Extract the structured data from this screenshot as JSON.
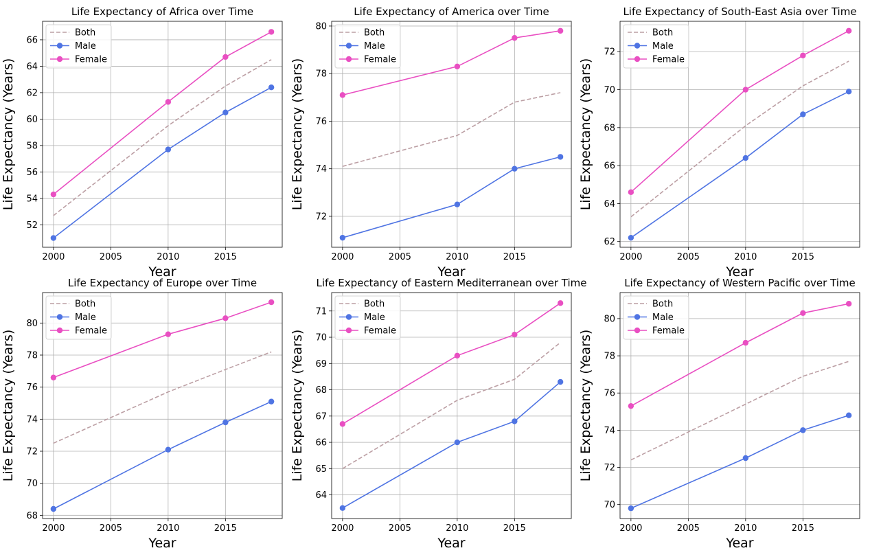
{
  "chart_data": [
    {
      "type": "line",
      "title": "Life Expectancy of Africa over Time",
      "xlabel": "Year",
      "ylabel": "Life Expectancy (Years)",
      "x": [
        2000,
        2010,
        2015,
        2019
      ],
      "xlim": [
        1999.05,
        2019.95
      ],
      "ylim": [
        50.3,
        67.4
      ],
      "xticks": [
        2000,
        2005,
        2010,
        2015
      ],
      "yticks": [
        52,
        54,
        56,
        58,
        60,
        62,
        64,
        66
      ],
      "grid": true,
      "legend": "top-left",
      "series": [
        {
          "name": "Both",
          "style": "dashed",
          "color": "#bc9fa4",
          "values": [
            52.7,
            59.5,
            62.5,
            64.5
          ]
        },
        {
          "name": "Male",
          "style": "solid-markers",
          "color": "#4f74e3",
          "values": [
            51.0,
            57.7,
            60.5,
            62.4
          ]
        },
        {
          "name": "Female",
          "style": "solid-markers",
          "color": "#e94fc2",
          "values": [
            54.3,
            61.3,
            64.7,
            66.6
          ]
        }
      ]
    },
    {
      "type": "line",
      "title": "Life Expectancy of America over Time",
      "xlabel": "Year",
      "ylabel": "Life Expectancy (Years)",
      "x": [
        2000,
        2010,
        2015,
        2019
      ],
      "xlim": [
        1999.05,
        2019.95
      ],
      "ylim": [
        70.7,
        80.2
      ],
      "xticks": [
        2000,
        2005,
        2010,
        2015
      ],
      "yticks": [
        72,
        74,
        76,
        78,
        80
      ],
      "grid": true,
      "legend": "top-left",
      "series": [
        {
          "name": "Both",
          "style": "dashed",
          "color": "#bc9fa4",
          "values": [
            74.1,
            75.4,
            76.8,
            77.2
          ]
        },
        {
          "name": "Male",
          "style": "solid-markers",
          "color": "#4f74e3",
          "values": [
            71.1,
            72.5,
            74.0,
            74.5
          ]
        },
        {
          "name": "Female",
          "style": "solid-markers",
          "color": "#e94fc2",
          "values": [
            77.1,
            78.3,
            79.5,
            79.8
          ]
        }
      ]
    },
    {
      "type": "line",
      "title": "Life Expectancy of South-East Asia over Time",
      "xlabel": "Year",
      "ylabel": "Life Expectancy (Years)",
      "x": [
        2000,
        2010,
        2015,
        2019
      ],
      "xlim": [
        1999.05,
        2019.95
      ],
      "ylim": [
        61.7,
        73.6
      ],
      "xticks": [
        2000,
        2005,
        2010,
        2015
      ],
      "yticks": [
        62,
        64,
        66,
        68,
        70,
        72
      ],
      "grid": true,
      "legend": "top-left",
      "series": [
        {
          "name": "Both",
          "style": "dashed",
          "color": "#bc9fa4",
          "values": [
            63.3,
            68.1,
            70.2,
            71.5
          ]
        },
        {
          "name": "Male",
          "style": "solid-markers",
          "color": "#4f74e3",
          "values": [
            62.2,
            66.4,
            68.7,
            69.9
          ]
        },
        {
          "name": "Female",
          "style": "solid-markers",
          "color": "#e94fc2",
          "values": [
            64.6,
            70.0,
            71.8,
            73.1
          ]
        }
      ]
    },
    {
      "type": "line",
      "title": "Life Expectancy of Europe over Time",
      "xlabel": "Year",
      "ylabel": "Life Expectancy (Years)",
      "x": [
        2000,
        2010,
        2015,
        2019
      ],
      "xlim": [
        1999.05,
        2019.95
      ],
      "ylim": [
        67.8,
        81.9
      ],
      "xticks": [
        2000,
        2005,
        2010,
        2015
      ],
      "yticks": [
        68,
        70,
        72,
        74,
        76,
        78,
        80
      ],
      "grid": true,
      "legend": "top-left",
      "series": [
        {
          "name": "Both",
          "style": "dashed",
          "color": "#bc9fa4",
          "values": [
            72.5,
            75.7,
            77.1,
            78.2
          ]
        },
        {
          "name": "Male",
          "style": "solid-markers",
          "color": "#4f74e3",
          "values": [
            68.4,
            72.1,
            73.8,
            75.1
          ]
        },
        {
          "name": "Female",
          "style": "solid-markers",
          "color": "#e94fc2",
          "values": [
            76.6,
            79.3,
            80.3,
            81.3
          ]
        }
      ]
    },
    {
      "type": "line",
      "title": "Life Expectancy of Eastern Mediterranean over Time",
      "xlabel": "Year",
      "ylabel": "Life Expectancy (Years)",
      "x": [
        2000,
        2010,
        2015,
        2019
      ],
      "xlim": [
        1999.05,
        2019.95
      ],
      "ylim": [
        63.1,
        71.7
      ],
      "xticks": [
        2000,
        2005,
        2010,
        2015
      ],
      "yticks": [
        64,
        65,
        66,
        67,
        68,
        69,
        70,
        71
      ],
      "grid": true,
      "legend": "top-left",
      "series": [
        {
          "name": "Both",
          "style": "dashed",
          "color": "#bc9fa4",
          "values": [
            65.0,
            67.6,
            68.4,
            69.8
          ]
        },
        {
          "name": "Male",
          "style": "solid-markers",
          "color": "#4f74e3",
          "values": [
            63.5,
            66.0,
            66.8,
            68.3
          ]
        },
        {
          "name": "Female",
          "style": "solid-markers",
          "color": "#e94fc2",
          "values": [
            66.7,
            69.3,
            70.1,
            71.3
          ]
        }
      ]
    },
    {
      "type": "line",
      "title": "Life Expectancy of Western Pacific over Time",
      "xlabel": "Year",
      "ylabel": "Life Expectancy (Years)",
      "x": [
        2000,
        2010,
        2015,
        2019
      ],
      "xlim": [
        1999.05,
        2019.95
      ],
      "ylim": [
        69.25,
        81.4
      ],
      "xticks": [
        2000,
        2005,
        2010,
        2015
      ],
      "yticks": [
        70,
        72,
        74,
        76,
        78,
        80
      ],
      "grid": true,
      "legend": "top-left",
      "series": [
        {
          "name": "Both",
          "style": "dashed",
          "color": "#bc9fa4",
          "values": [
            72.4,
            75.4,
            76.9,
            77.7
          ]
        },
        {
          "name": "Male",
          "style": "solid-markers",
          "color": "#4f74e3",
          "values": [
            69.8,
            72.5,
            74.0,
            74.8
          ]
        },
        {
          "name": "Female",
          "style": "solid-markers",
          "color": "#e94fc2",
          "values": [
            75.3,
            78.7,
            80.3,
            80.8
          ]
        }
      ]
    }
  ]
}
